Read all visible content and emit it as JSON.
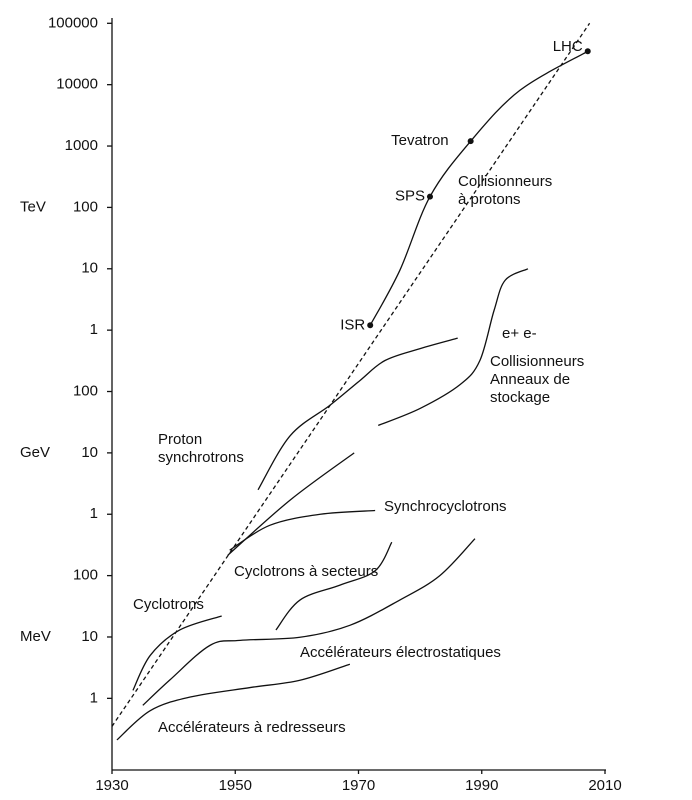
{
  "chart_data": {
    "type": "line",
    "log_y": true,
    "color": "#111111",
    "xlim": [
      1930,
      2010
    ],
    "xticks": [
      1930,
      1950,
      1970,
      1990,
      2010
    ],
    "ylim": [
      0.068,
      105000000000.0
    ],
    "yticks": [
      1,
      10,
      100,
      {
        "value": 1000,
        "label": "1"
      },
      {
        "value": 10000,
        "label": "10"
      },
      {
        "value": 100000,
        "label": "100"
      },
      {
        "value": 1000000,
        "label": "1"
      },
      {
        "value": 10000000,
        "label": "10"
      },
      {
        "value": 100000000,
        "label": "100"
      },
      {
        "value": 1000000000,
        "label": "1000"
      },
      {
        "value": 10000000000,
        "label": "10000"
      },
      {
        "value": 100000000000,
        "label": "100000"
      }
    ],
    "y_units": [
      "TeV",
      "GeV",
      "MeV"
    ],
    "series": [
      {
        "dash": true,
        "x": [
          1930,
          2007.5
        ],
        "values": [
          0.35,
          100000000000.0
        ]
      },
      {
        "label": [
          "Collisionneurs",
          "à protons"
        ],
        "x": [
          1971.9,
          1976.7,
          1981.6,
          1988.2,
          1996.2,
          2007.2
        ],
        "values": [
          1200000.0,
          9400000.0,
          150000000.0,
          1200000000.0,
          8100000000.0,
          35000000000.0
        ]
      },
      {
        "label": [
          "e+ e-",
          "Collisionneurs",
          "Anneaux de",
          "stockage"
        ],
        "x": [
          1973.2,
          1980,
          1986.5,
          1989.7,
          1992,
          1993.8,
          1997.5
        ],
        "values": [
          28000.0,
          53000.0,
          130000.0,
          320000.0,
          2100000.0,
          6500000.0,
          10000000.0
        ]
      },
      {
        "label": [
          "Proton",
          "synchrotrons"
        ],
        "x": [
          1953.7,
          1958.9,
          1965.4,
          1970.2,
          1974.3,
          1980,
          1986.1
        ],
        "values": [
          2500,
          19000,
          60000,
          150000,
          320000,
          500000,
          740000
        ]
      },
      {
        "x": [
          1948.8,
          1958.9,
          1969.3
        ],
        "values": [
          215,
          1700,
          10000
        ]
      },
      {
        "label": [
          "Synchrocyclotrons"
        ],
        "x": [
          1949.1,
          1955.6,
          1963.8,
          1972.7
        ],
        "values": [
          260,
          660,
          1000,
          1150
        ]
      },
      {
        "label": [
          "Cyclotrons à secteurs"
        ],
        "x": [
          1956.6,
          1960.5,
          1967,
          1972.7,
          1975.4
        ],
        "values": [
          13,
          40,
          70,
          120,
          350
        ]
      },
      {
        "label": [
          "Cyclotrons"
        ],
        "x": [
          1933.4,
          1936.2,
          1941,
          1947.8
        ],
        "values": [
          1.35,
          5,
          13,
          22
        ]
      },
      {
        "label": [
          "Accélérateurs électrostatiques"
        ],
        "x": [
          1935,
          1939.4,
          1945.9,
          1950.8,
          1960.5,
          1968.6,
          1976.7,
          1983.2,
          1988.9
        ],
        "values": [
          0.77,
          2,
          7.3,
          8.8,
          9.9,
          15.5,
          40,
          100,
          400
        ]
      },
      {
        "label": [
          "Accélérateurs à redresseurs"
        ],
        "x": [
          1930.8,
          1936.2,
          1942.7,
          1952.4,
          1960.5,
          1968.6
        ],
        "values": [
          0.21,
          0.63,
          1.05,
          1.5,
          1.97,
          3.6
        ]
      }
    ],
    "machines": [
      {
        "name": "ISR",
        "x": 1971.9,
        "value": 1200000.0
      },
      {
        "name": "SPS",
        "x": 1981.6,
        "value": 150000000.0
      },
      {
        "name": "Tevatron",
        "x": 1988.2,
        "value": 1200000000.0
      },
      {
        "name": "LHC",
        "x": 2007.2,
        "value": 35000000000.0
      }
    ]
  }
}
